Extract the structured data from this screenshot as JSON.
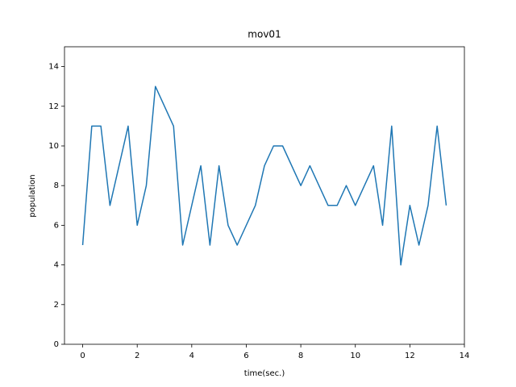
{
  "chart_data": {
    "type": "line",
    "title": "mov01",
    "x_label": "time(sec.)",
    "y_label": "population",
    "x": [
      0,
      0.333,
      0.667,
      1.0,
      1.667,
      2.0,
      2.333,
      2.667,
      3.333,
      3.667,
      4.333,
      4.667,
      5.0,
      5.333,
      5.667,
      6.333,
      6.667,
      7.0,
      7.333,
      8.0,
      8.333,
      9.0,
      9.333,
      9.667,
      10.0,
      10.667,
      11.0,
      11.333,
      11.667,
      12.0,
      12.333,
      12.667,
      13.0,
      13.333
    ],
    "series": [
      {
        "color": "#1f77b4",
        "values": [
          5,
          11,
          11,
          7,
          11,
          6,
          8,
          13,
          11,
          5,
          9,
          5,
          9,
          6,
          5,
          7,
          9,
          10,
          10,
          8,
          9,
          7,
          7,
          8,
          7,
          9,
          6,
          11,
          4,
          7,
          5,
          7,
          11,
          7
        ]
      }
    ],
    "xlim": [
      -0.667,
      14
    ],
    "ylim": [
      0,
      15
    ],
    "xticks": [
      0,
      2,
      4,
      6,
      8,
      10,
      12,
      14
    ],
    "yticks": [
      0,
      2,
      4,
      6,
      8,
      10,
      12,
      14
    ]
  }
}
